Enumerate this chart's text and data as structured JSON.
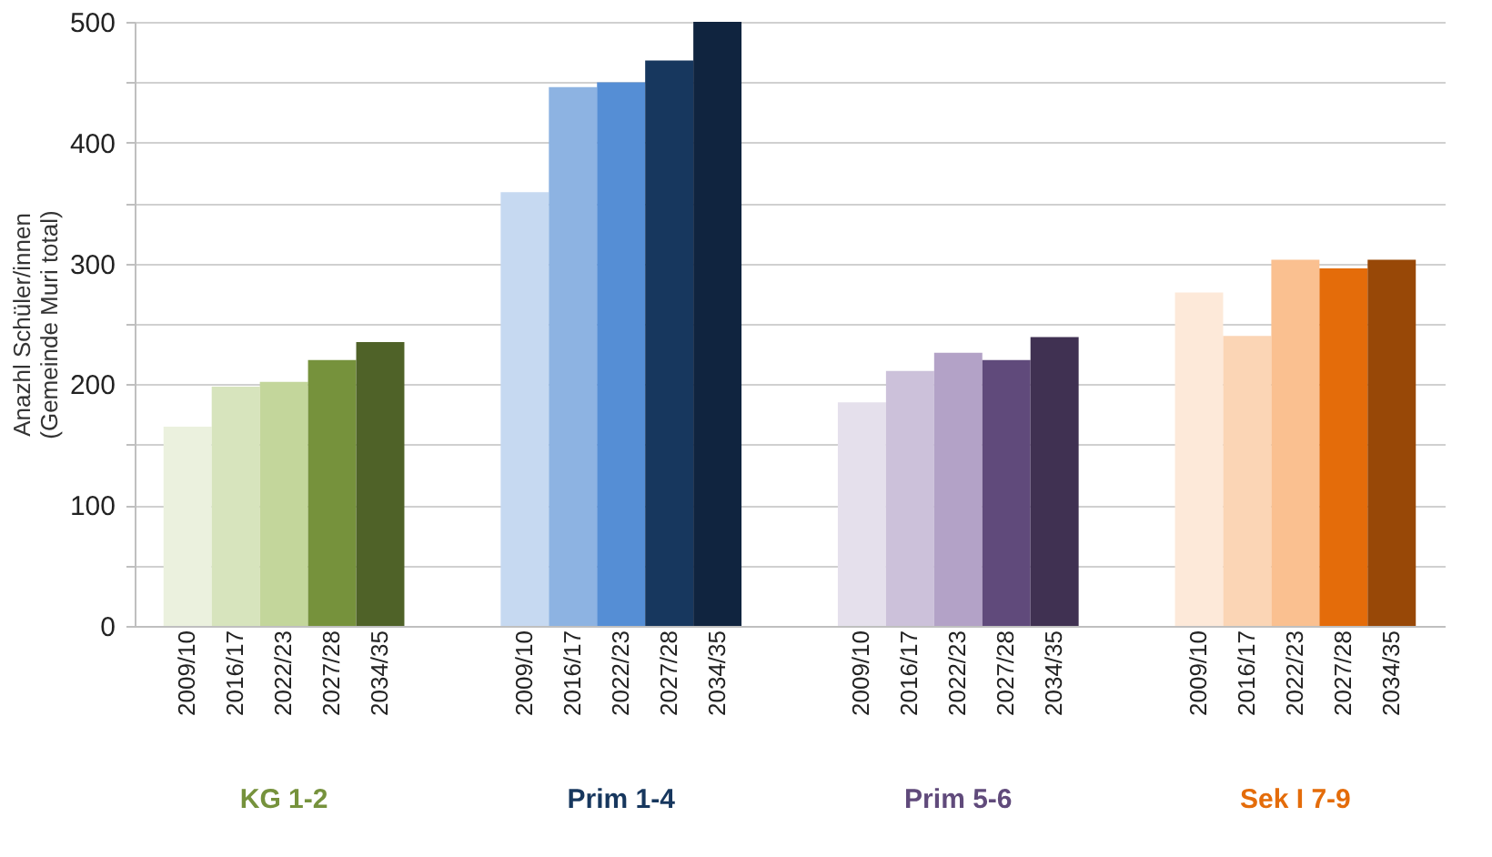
{
  "chart_data": {
    "type": "bar",
    "ylabel": "Anazhl Schüler/innen\n(Gemeinde Muri total)",
    "categories": [
      "2009/10",
      "2016/17",
      "2022/23",
      "2027/28",
      "2034/35",
      null,
      null,
      "2009/10",
      "2016/17",
      "2022/23",
      "2027/28",
      "2034/35",
      null,
      null,
      "2009/10",
      "2016/17",
      "2022/23",
      "2027/28",
      "2034/35",
      null,
      null,
      "2009/10",
      "2016/17",
      "2022/23",
      "2027/28",
      "2034/35"
    ],
    "values": [
      165,
      198,
      202,
      220,
      235,
      null,
      null,
      359,
      446,
      450,
      468,
      500,
      null,
      null,
      185,
      211,
      226,
      220,
      239,
      null,
      null,
      276,
      240,
      303,
      296,
      303
    ],
    "colors": [
      "#ebf1de",
      "#d7e4bd",
      "#c3d69b",
      "#76923c",
      "#4f6228",
      null,
      null,
      "#c6d9f1",
      "#8db3e2",
      "#558ed5",
      "#17375e",
      "#10243f",
      null,
      null,
      "#e5e0ec",
      "#ccc1da",
      "#b3a2c7",
      "#604a7b",
      "#403152",
      null,
      null,
      "#fde9d9",
      "#fbd5b5",
      "#fac090",
      "#e46c0a",
      "#984807"
    ],
    "annotations": [
      "KG 1-2",
      "Prim 1-4",
      "Prim 5-6",
      "Sek I 7-9"
    ],
    "ylim": [
      0,
      500
    ],
    "yticks": [
      0,
      {
        "value": 50,
        "label": null
      },
      100,
      {
        "value": 150,
        "label": null
      },
      200,
      {
        "value": 250,
        "label": null
      },
      300,
      {
        "value": 350,
        "label": null
      },
      400,
      {
        "value": 450,
        "label": null
      },
      500
    ],
    "grid": "y"
  }
}
